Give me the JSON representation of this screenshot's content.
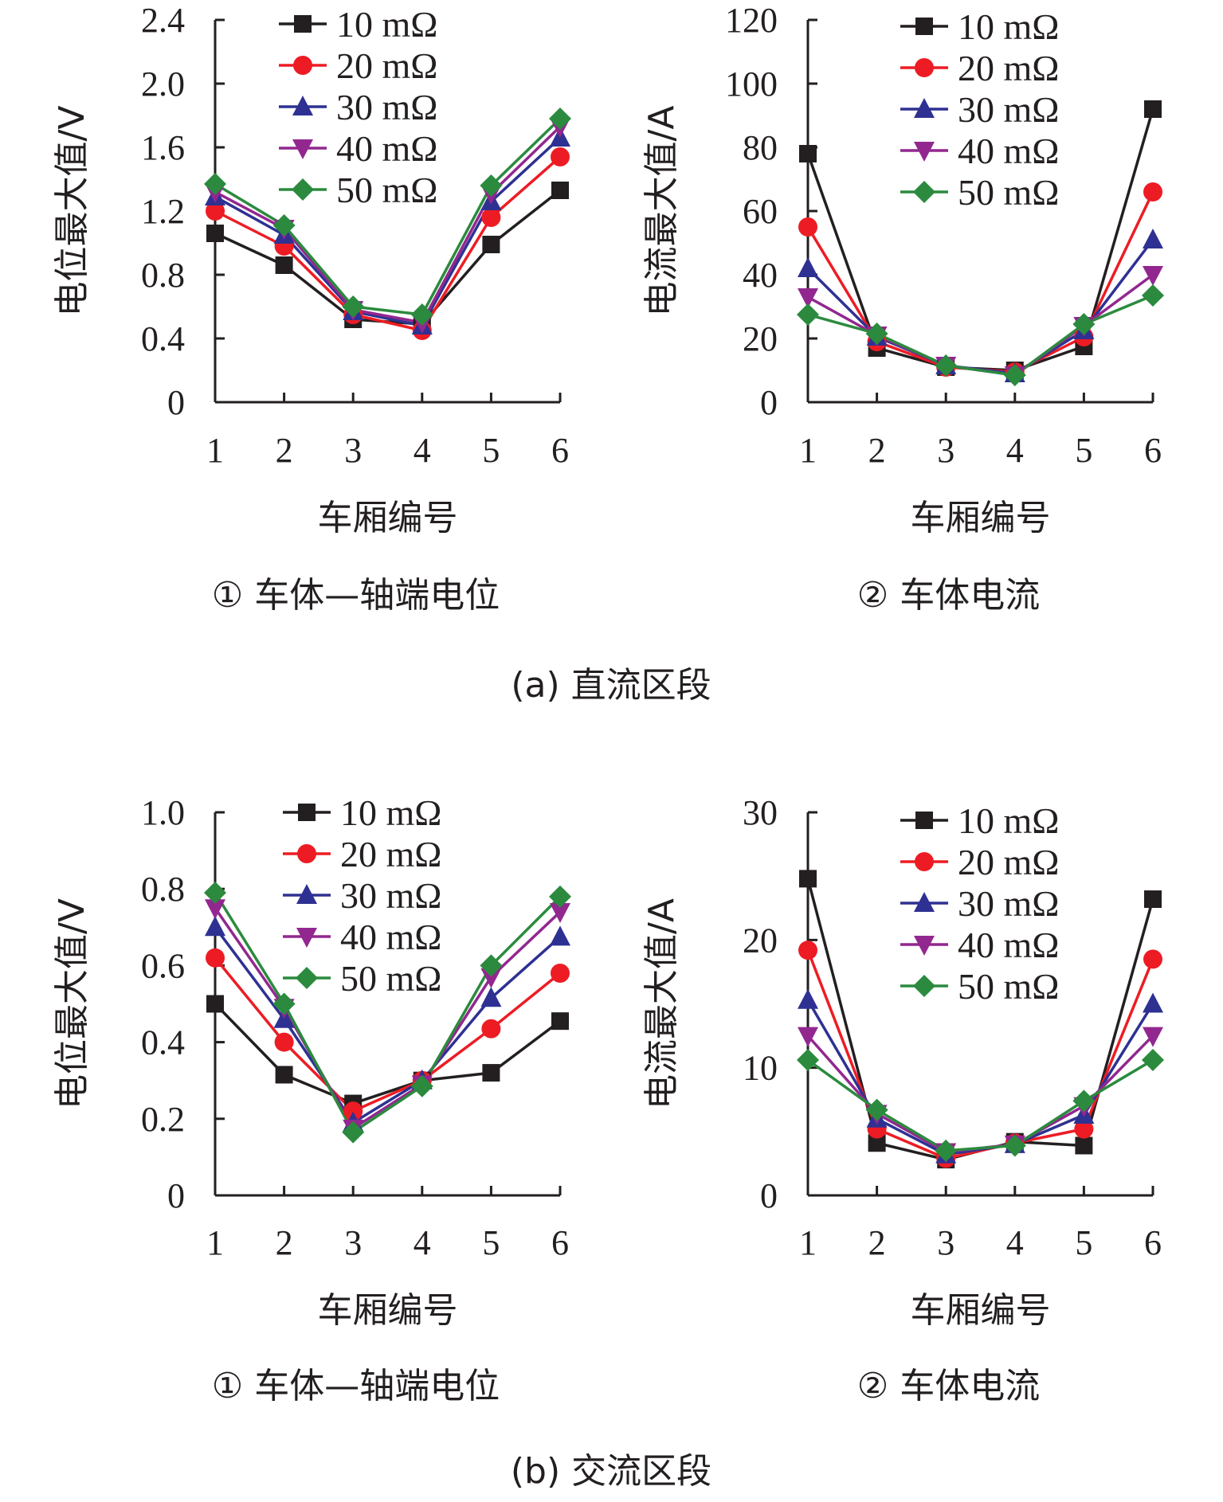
{
  "chart_data": [
    {
      "type": "line",
      "group": "a",
      "subtitle": "① 车体—轴端电位",
      "xlabel": "车厢编号",
      "ylabel": "电位最大值/V",
      "categories": [
        "1",
        "2",
        "3",
        "4",
        "5",
        "6"
      ],
      "ylim": [
        0,
        2.4
      ],
      "yticks": [
        "0",
        "0.4",
        "0.8",
        "1.2",
        "1.6",
        "2.0",
        "2.4"
      ],
      "series": [
        {
          "name": "10 mΩ",
          "values": [
            1.06,
            0.86,
            0.52,
            0.49,
            0.99,
            1.33
          ]
        },
        {
          "name": "20 mΩ",
          "values": [
            1.2,
            0.98,
            0.55,
            0.45,
            1.16,
            1.54
          ]
        },
        {
          "name": "30 mΩ",
          "values": [
            1.29,
            1.05,
            0.57,
            0.48,
            1.26,
            1.66
          ]
        },
        {
          "name": "40 mΩ",
          "values": [
            1.32,
            1.09,
            0.58,
            0.5,
            1.31,
            1.73
          ]
        },
        {
          "name": "50 mΩ",
          "values": [
            1.37,
            1.11,
            0.6,
            0.55,
            1.36,
            1.78
          ]
        }
      ]
    },
    {
      "type": "line",
      "group": "a",
      "subtitle": "② 车体电流",
      "xlabel": "车厢编号",
      "ylabel": "电流最大值/A",
      "categories": [
        "1",
        "2",
        "3",
        "4",
        "5",
        "6"
      ],
      "ylim": [
        0,
        120
      ],
      "yticks": [
        "0",
        "20",
        "40",
        "60",
        "80",
        "100",
        "120"
      ],
      "series": [
        {
          "name": "10 mΩ",
          "values": [
            78,
            17,
            11,
            10,
            17.5,
            92
          ]
        },
        {
          "name": "20 mΩ",
          "values": [
            55,
            19,
            11,
            9.5,
            20.5,
            66
          ]
        },
        {
          "name": "30 mΩ",
          "values": [
            42,
            20.5,
            11.5,
            9,
            22.5,
            51
          ]
        },
        {
          "name": "40 mΩ",
          "values": [
            33,
            21,
            11.5,
            8.5,
            24,
            40
          ]
        },
        {
          "name": "50 mΩ",
          "values": [
            27.5,
            21.5,
            11.5,
            8.5,
            24.5,
            33.5
          ]
        }
      ]
    },
    {
      "type": "line",
      "group": "b",
      "subtitle": "① 车体—轴端电位",
      "xlabel": "车厢编号",
      "ylabel": "电位最大值/V",
      "categories": [
        "1",
        "2",
        "3",
        "4",
        "5",
        "6"
      ],
      "ylim": [
        0,
        1.0
      ],
      "yticks": [
        "0",
        "0.2",
        "0.4",
        "0.6",
        "0.8",
        "1.0"
      ],
      "series": [
        {
          "name": "10 mΩ",
          "values": [
            0.5,
            0.315,
            0.24,
            0.3,
            0.32,
            0.455
          ]
        },
        {
          "name": "20 mΩ",
          "values": [
            0.62,
            0.4,
            0.22,
            0.3,
            0.435,
            0.58
          ]
        },
        {
          "name": "30 mΩ",
          "values": [
            0.7,
            0.46,
            0.19,
            0.3,
            0.515,
            0.675
          ]
        },
        {
          "name": "40 mΩ",
          "values": [
            0.75,
            0.49,
            0.175,
            0.29,
            0.57,
            0.74
          ]
        },
        {
          "name": "50 mΩ",
          "values": [
            0.79,
            0.5,
            0.165,
            0.285,
            0.6,
            0.78
          ]
        }
      ]
    },
    {
      "type": "line",
      "group": "b",
      "subtitle": "② 车体电流",
      "xlabel": "车厢编号",
      "ylabel": "电流最大值/A",
      "categories": [
        "1",
        "2",
        "3",
        "4",
        "5",
        "6"
      ],
      "ylim": [
        0,
        30
      ],
      "yticks": [
        "0",
        "10",
        "20",
        "30"
      ],
      "series": [
        {
          "name": "10 mΩ",
          "values": [
            24.8,
            4.1,
            2.8,
            4.2,
            3.9,
            23.2
          ]
        },
        {
          "name": "20 mΩ",
          "values": [
            19.2,
            5.2,
            2.9,
            4.1,
            5.2,
            18.5
          ]
        },
        {
          "name": "30 mΩ",
          "values": [
            15.3,
            6.0,
            3.2,
            4.0,
            6.3,
            15.0
          ]
        },
        {
          "name": "40 mΩ",
          "values": [
            12.5,
            6.4,
            3.4,
            4.0,
            7.0,
            12.5
          ]
        },
        {
          "name": "50 mΩ",
          "values": [
            10.6,
            6.7,
            3.5,
            3.9,
            7.4,
            10.6
          ]
        }
      ]
    }
  ],
  "captions": {
    "a": "(a) 直流区段",
    "b": "(b) 交流区段"
  },
  "style": {
    "series_colors": [
      "#231f20",
      "#ed1c24",
      "#2e3192",
      "#92278f",
      "#2b8a3e"
    ],
    "series_markers": [
      "square",
      "circle",
      "triangle-up",
      "triangle-down",
      "diamond"
    ]
  }
}
